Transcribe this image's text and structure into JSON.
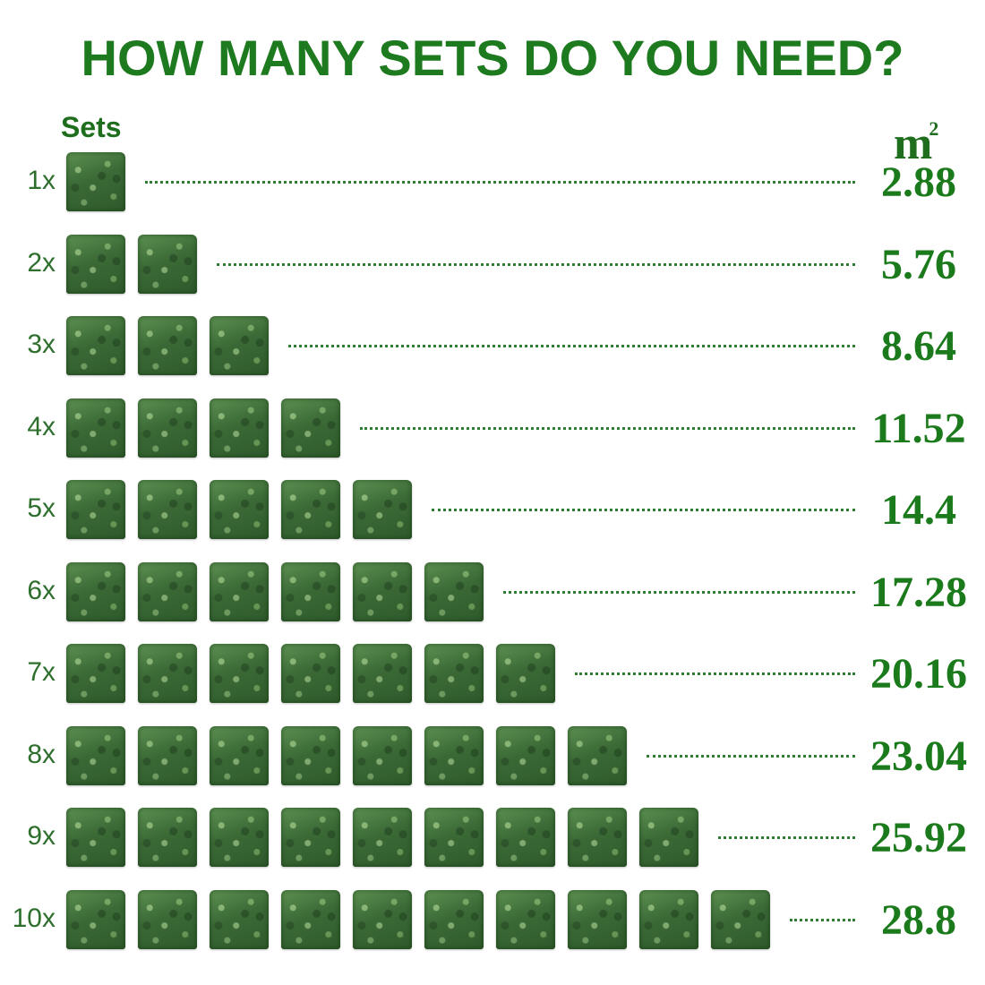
{
  "colors": {
    "title": "#1e7a1e",
    "headers": "#1e6e1e",
    "labels": "#2e6f2e",
    "values": "#1b7a1b",
    "dots": "#2e7d32"
  },
  "chart_data": {
    "type": "table",
    "title": "HOW MANY SETS DO YOU NEED?",
    "xlabel": "Sets",
    "ylabel": "㎡",
    "unit_label": "m",
    "unit_superscript": "2",
    "rows": [
      {
        "label": "1x",
        "sets": 1,
        "value": "2.88"
      },
      {
        "label": "2x",
        "sets": 2,
        "value": "5.76"
      },
      {
        "label": "3x",
        "sets": 3,
        "value": "8.64"
      },
      {
        "label": "4x",
        "sets": 4,
        "value": "11.52"
      },
      {
        "label": "5x",
        "sets": 5,
        "value": "14.4"
      },
      {
        "label": "6x",
        "sets": 6,
        "value": "17.28"
      },
      {
        "label": "7x",
        "sets": 7,
        "value": "20.16"
      },
      {
        "label": "8x",
        "sets": 8,
        "value": "23.04"
      },
      {
        "label": "9x",
        "sets": 9,
        "value": "25.92"
      },
      {
        "label": "10x",
        "sets": 10,
        "value": "28.8"
      }
    ],
    "tile_icon": "boxwood-hedge-tile-icon"
  }
}
